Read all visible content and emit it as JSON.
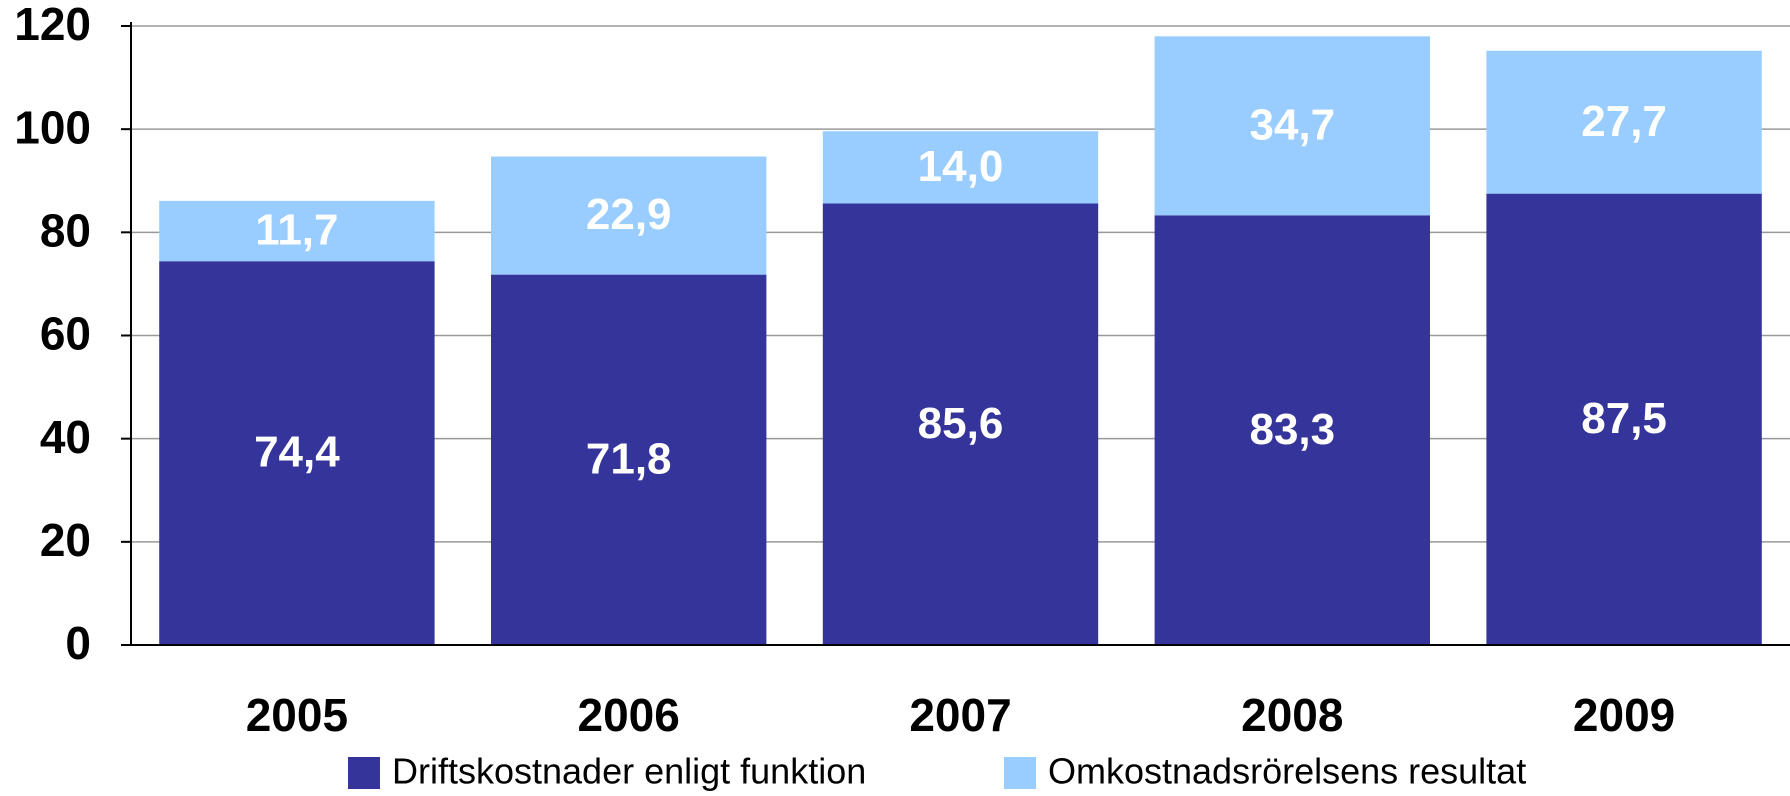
{
  "chart_data": {
    "type": "stacked_bar",
    "categories": [
      "2005",
      "2006",
      "2007",
      "2008",
      "2009"
    ],
    "series": [
      {
        "name": "Driftskostnader enligt funktion",
        "color": "#35349a",
        "values": [
          74.4,
          71.8,
          85.6,
          83.3,
          87.5
        ],
        "value_labels": [
          "74,4",
          "71,8",
          "85,6",
          "83,3",
          "87,5"
        ]
      },
      {
        "name": "Omkostnadsrörelsens resultat",
        "color": "#99ccff",
        "values": [
          11.7,
          22.9,
          14.0,
          34.7,
          27.7
        ],
        "value_labels": [
          "11,7",
          "22,9",
          "14,0",
          "34,7",
          "27,7"
        ]
      }
    ],
    "ylim": [
      0,
      120
    ],
    "yticks": [
      0,
      20,
      40,
      60,
      80,
      100,
      120
    ],
    "grid": true
  }
}
